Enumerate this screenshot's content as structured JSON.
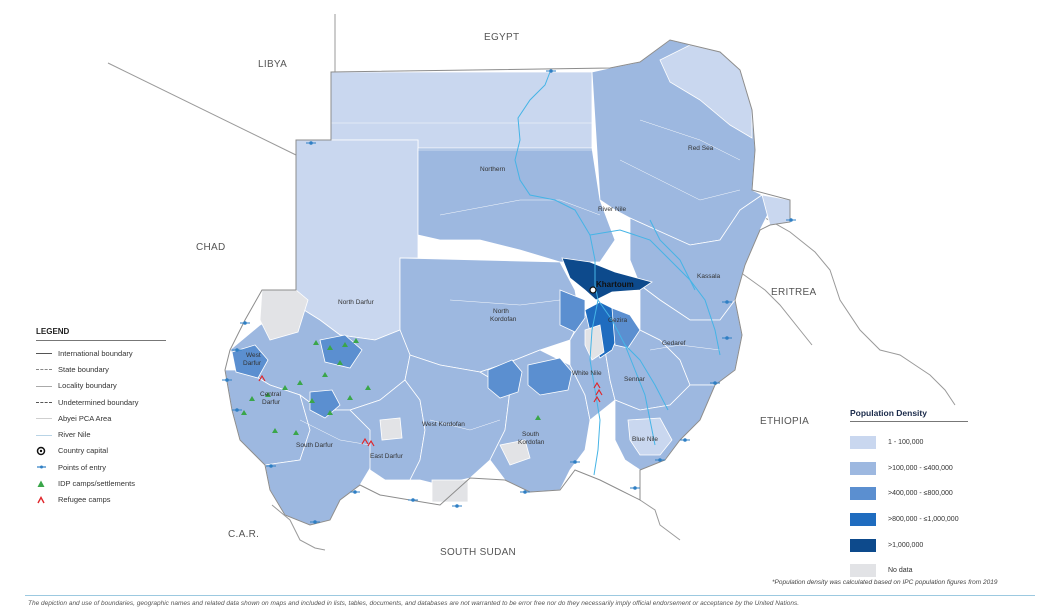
{
  "countries": {
    "egypt": "EGYPT",
    "libya": "LIBYA",
    "chad": "CHAD",
    "car": "C.A.R.",
    "south_sudan": "SOUTH SUDAN",
    "eritrea": "ERITREA",
    "ethiopia": "ETHIOPIA"
  },
  "states": {
    "northern": "Northern",
    "red_sea": "Red Sea",
    "river_nile": "River Nile",
    "kassala": "Kassala",
    "khartoum": "Khartoum",
    "north_kordofan": "North Kordofan",
    "north_darfur": "North Darfur",
    "west_darfur": "West Darfur",
    "central_darfur": "Central Darfur",
    "south_darfur": "South Darfur",
    "east_darfur": "East Darfur",
    "west_kordofan": "West Kordofan",
    "south_kordofan": "South Kordofan",
    "white_nile": "White Nile",
    "gezira": "Gezira",
    "gedaref": "Gedaref",
    "sennar": "Sennar",
    "blue_nile": "Blue Nile"
  },
  "legend": {
    "title": "LEGEND",
    "items": [
      {
        "label": "International boundary",
        "symbol": "line-solid-dark"
      },
      {
        "label": "State boundary",
        "symbol": "line-dashed-grey"
      },
      {
        "label": "Locality boundary",
        "symbol": "line-solid-light"
      },
      {
        "label": "Undetermined boundary",
        "symbol": "line-dashed-dark"
      },
      {
        "label": "Abyei PCA Area",
        "symbol": "line-solid-faint"
      },
      {
        "label": "River Nile",
        "symbol": "line-light-blue"
      },
      {
        "label": "Country capital",
        "symbol": "capital-icon"
      },
      {
        "label": "Points of entry",
        "symbol": "entry-point-icon"
      },
      {
        "label": "IDP camps/settlements",
        "symbol": "idp-camp-icon"
      },
      {
        "label": "Refugee camps",
        "symbol": "refugee-camp-icon"
      }
    ]
  },
  "density_legend": {
    "title": "Population Density",
    "classes": [
      {
        "label": "1 - 100,000",
        "color": "#c9d7ef"
      },
      {
        "label": ">100,000 - ≤400,000",
        "color": "#9db8e0"
      },
      {
        "label": ">400,000 - ≤800,000",
        "color": "#5b8fd0"
      },
      {
        "label": ">800,000 - ≤1,000,000",
        "color": "#1f6cbf"
      },
      {
        "label": ">1,000,000",
        "color": "#0d4a8c"
      },
      {
        "label": "No data",
        "color": "#e2e3e6"
      }
    ]
  },
  "footnote": "*Population density was calculated based on IPC population figures from 2019",
  "disclaimer": "The depiction and use of boundaries, geographic names and related data shown on maps and included in lists, tables, documents, and databases are not warranted to be error free nor do they necessarily imply official endorsement or acceptance by the United Nations.",
  "colors": {
    "class1": "#c9d7ef",
    "class2": "#9db8e0",
    "class3": "#5b8fd0",
    "class4": "#1f6cbf",
    "class5": "#0d4a8c",
    "nodata": "#e2e3e6",
    "river": "#45b4e6",
    "idp": "#3aa64a",
    "refugee": "#e0262b"
  }
}
